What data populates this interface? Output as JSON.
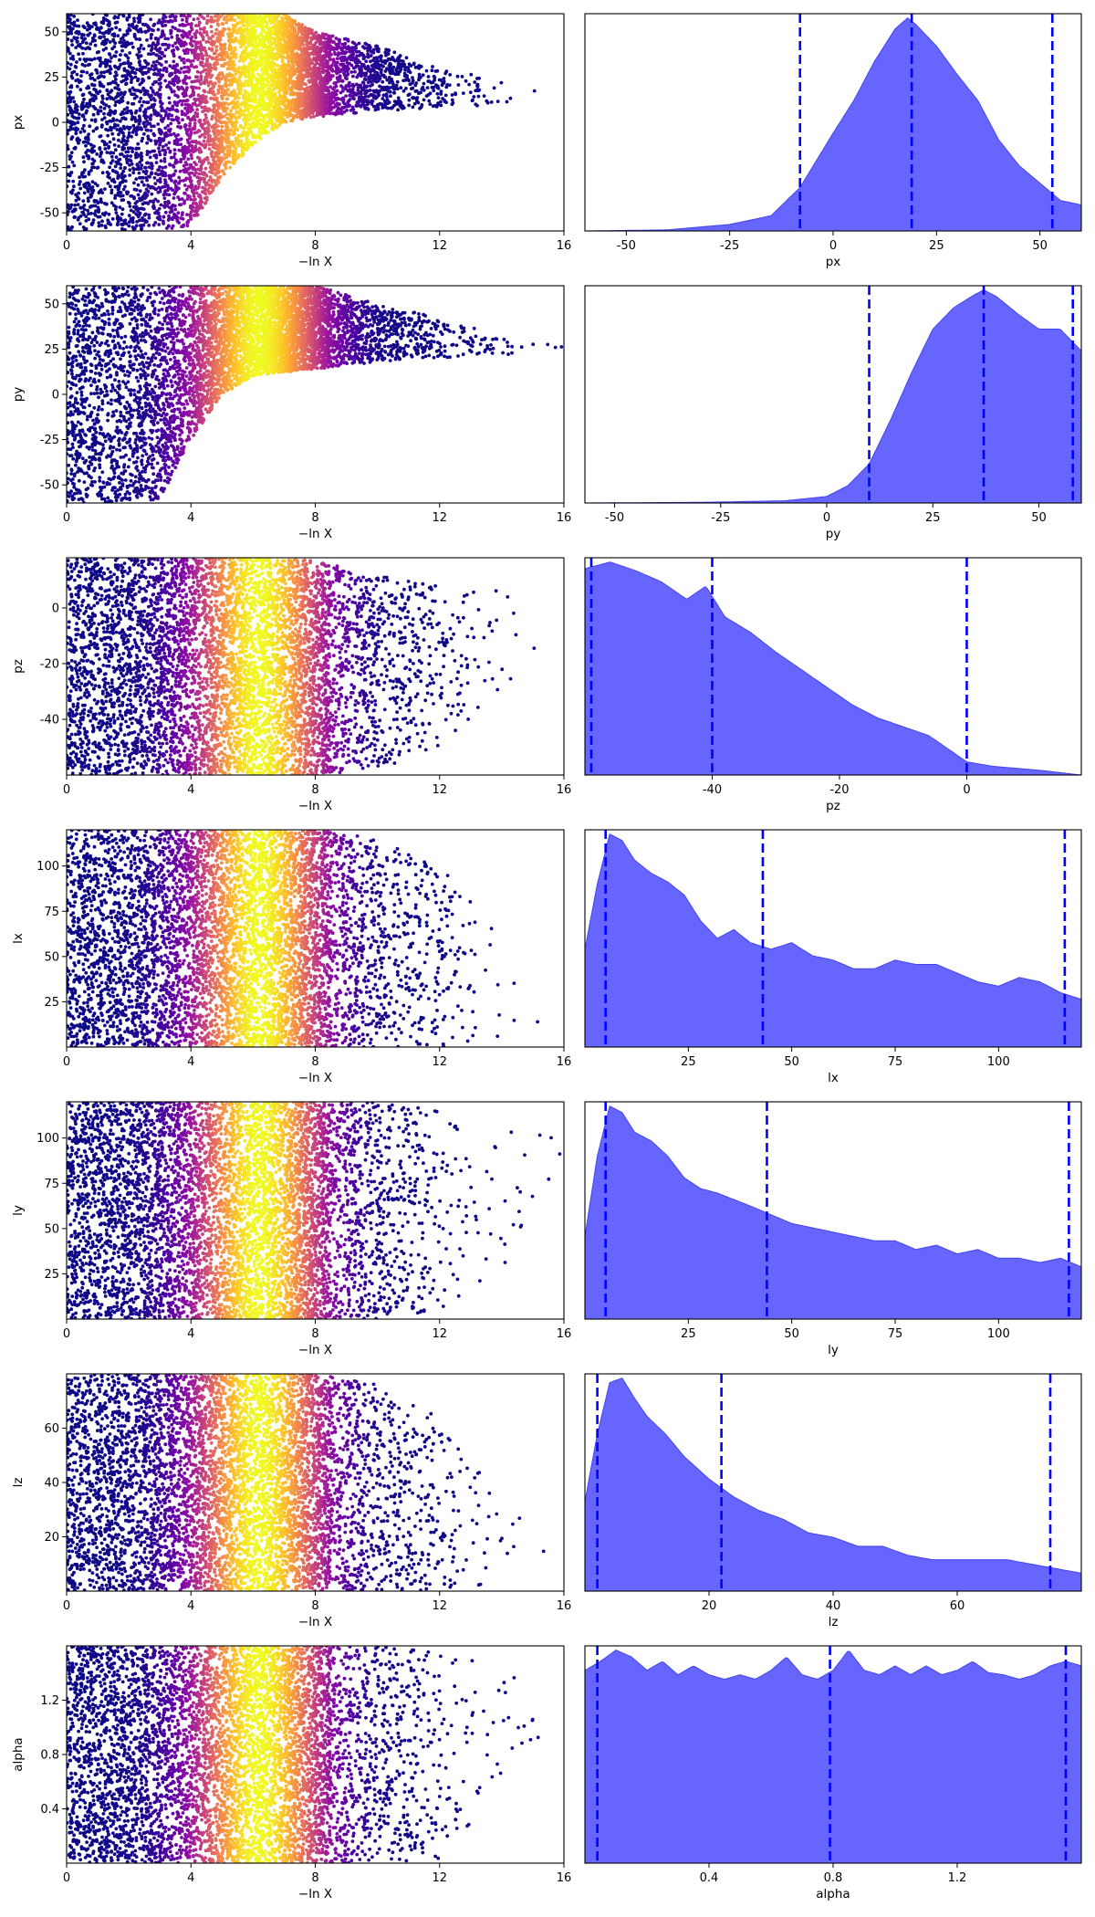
{
  "chart_data": [
    {
      "type": "scatter",
      "xlabel": "−ln X",
      "ylabel": "px",
      "xlim": [
        0,
        16
      ],
      "ylim": [
        -60,
        60
      ],
      "xticks": [
        0,
        4,
        8,
        12,
        16
      ],
      "yticks": [
        -50,
        -25,
        0,
        25,
        50
      ],
      "colormap": "plasma",
      "description_of_points": "nested sampling dead points; peak density near x=6",
      "profile": {
        "x": [
          0,
          2,
          4,
          5,
          6,
          7,
          8,
          10,
          12,
          14,
          16
        ],
        "lower": [
          -60,
          -60,
          -58,
          -30,
          -12,
          0,
          3,
          6,
          8,
          10,
          12
        ],
        "upper": [
          60,
          60,
          60,
          60,
          60,
          60,
          50,
          42,
          30,
          24,
          20
        ]
      }
    },
    {
      "type": "area",
      "xlabel": "px",
      "ylabel": "",
      "xlim": [
        -60,
        60
      ],
      "xticks": [
        -50,
        -25,
        0,
        25,
        50
      ],
      "fill_color": "#6666ff",
      "x": [
        -60,
        -40,
        -25,
        -15,
        -8,
        0,
        5,
        10,
        15,
        18,
        20,
        25,
        30,
        35,
        40,
        45,
        50,
        55,
        60
      ],
      "density": [
        0.0,
        0.005,
        0.03,
        0.07,
        0.2,
        0.45,
        0.6,
        0.78,
        0.93,
        0.98,
        0.95,
        0.85,
        0.72,
        0.6,
        0.42,
        0.3,
        0.22,
        0.14,
        0.12
      ],
      "quantile_lines": [
        -8,
        19,
        53
      ],
      "quantile_color": "#0000ff"
    },
    {
      "type": "scatter",
      "xlabel": "−ln X",
      "ylabel": "py",
      "xlim": [
        0,
        16
      ],
      "ylim": [
        -60,
        60
      ],
      "xticks": [
        0,
        4,
        8,
        12,
        16
      ],
      "yticks": [
        -50,
        -25,
        0,
        25,
        50
      ],
      "colormap": "plasma",
      "profile": {
        "x": [
          0,
          1,
          2,
          3,
          4,
          5,
          6,
          8,
          10,
          12,
          14,
          16
        ],
        "lower": [
          -60,
          -60,
          -60,
          -58,
          -25,
          0,
          10,
          14,
          18,
          20,
          22,
          20
        ],
        "upper": [
          60,
          60,
          60,
          60,
          60,
          60,
          60,
          60,
          50,
          42,
          32,
          28
        ]
      }
    },
    {
      "type": "area",
      "xlabel": "py",
      "ylabel": "",
      "xlim": [
        -57,
        60
      ],
      "xticks": [
        -50,
        -25,
        0,
        25,
        50
      ],
      "fill_color": "#6666ff",
      "x": [
        -57,
        -30,
        -10,
        0,
        5,
        10,
        15,
        20,
        25,
        30,
        35,
        37,
        40,
        45,
        50,
        55,
        60
      ],
      "density": [
        0.0,
        0.003,
        0.01,
        0.03,
        0.08,
        0.18,
        0.38,
        0.6,
        0.8,
        0.9,
        0.96,
        0.98,
        0.95,
        0.87,
        0.8,
        0.8,
        0.7
      ],
      "quantile_lines": [
        10,
        37,
        58
      ],
      "quantile_color": "#0000ff"
    },
    {
      "type": "scatter",
      "xlabel": "−ln X",
      "ylabel": "pz",
      "xlim": [
        0,
        16
      ],
      "ylim": [
        -60,
        18
      ],
      "xticks": [
        0,
        4,
        8,
        12,
        16
      ],
      "yticks": [
        -40,
        -20,
        0
      ],
      "colormap": "plasma",
      "profile": {
        "x": [
          0,
          4,
          6,
          8,
          10,
          12,
          14,
          16
        ],
        "lower": [
          -60,
          -60,
          -60,
          -60,
          -58,
          -50,
          -30,
          -20
        ],
        "upper": [
          18,
          18,
          18,
          17,
          12,
          8,
          6,
          5
        ]
      }
    },
    {
      "type": "area",
      "xlabel": "pz",
      "ylabel": "",
      "xlim": [
        -60,
        18
      ],
      "xticks": [
        -40,
        -20,
        0
      ],
      "fill_color": "#6666ff",
      "x": [
        -60,
        -56,
        -52,
        -48,
        -44,
        -41,
        -38,
        -34,
        -30,
        -26,
        -22,
        -18,
        -14,
        -10,
        -6,
        -3,
        0,
        4,
        8,
        12,
        18
      ],
      "density": [
        0.94,
        0.97,
        0.93,
        0.88,
        0.8,
        0.86,
        0.72,
        0.65,
        0.56,
        0.48,
        0.4,
        0.32,
        0.26,
        0.22,
        0.18,
        0.12,
        0.06,
        0.04,
        0.03,
        0.02,
        0.0
      ],
      "quantile_lines": [
        -59,
        -40,
        0
      ],
      "quantile_color": "#0000ff"
    },
    {
      "type": "scatter",
      "xlabel": "−ln X",
      "ylabel": "lx",
      "xlim": [
        0,
        16
      ],
      "ylim": [
        0,
        120
      ],
      "xticks": [
        0,
        4,
        8,
        12,
        16
      ],
      "yticks": [
        25,
        50,
        75,
        100
      ],
      "colormap": "plasma",
      "profile": {
        "x": [
          0,
          8,
          10,
          12,
          14,
          16
        ],
        "lower": [
          0,
          0,
          0,
          0,
          2,
          5
        ],
        "upper": [
          120,
          120,
          115,
          100,
          60,
          25
        ]
      }
    },
    {
      "type": "area",
      "xlabel": "lx",
      "ylabel": "",
      "xlim": [
        0,
        120
      ],
      "xticks": [
        25,
        50,
        75,
        100
      ],
      "fill_color": "#6666ff",
      "x": [
        0,
        3,
        6,
        9,
        12,
        16,
        20,
        24,
        28,
        32,
        36,
        40,
        45,
        50,
        55,
        60,
        65,
        70,
        75,
        80,
        85,
        90,
        95,
        100,
        105,
        110,
        115,
        120
      ],
      "density": [
        0.45,
        0.75,
        0.98,
        0.95,
        0.86,
        0.8,
        0.76,
        0.7,
        0.58,
        0.5,
        0.54,
        0.48,
        0.45,
        0.48,
        0.42,
        0.4,
        0.36,
        0.36,
        0.4,
        0.38,
        0.38,
        0.34,
        0.3,
        0.28,
        0.32,
        0.3,
        0.25,
        0.22
      ],
      "quantile_lines": [
        5,
        43,
        116
      ],
      "quantile_color": "#0000ff"
    },
    {
      "type": "scatter",
      "xlabel": "−ln X",
      "ylabel": "ly",
      "xlim": [
        0,
        16
      ],
      "ylim": [
        0,
        120
      ],
      "xticks": [
        0,
        4,
        8,
        12,
        16
      ],
      "yticks": [
        25,
        50,
        75,
        100
      ],
      "colormap": "plasma",
      "profile": {
        "x": [
          0,
          8,
          10,
          12,
          14,
          16
        ],
        "lower": [
          0,
          0,
          0,
          5,
          25,
          90
        ],
        "upper": [
          120,
          120,
          120,
          115,
          110,
          100
        ]
      }
    },
    {
      "type": "area",
      "xlabel": "ly",
      "ylabel": "",
      "xlim": [
        0,
        120
      ],
      "xticks": [
        25,
        50,
        75,
        100
      ],
      "fill_color": "#6666ff",
      "x": [
        0,
        3,
        6,
        9,
        12,
        16,
        20,
        24,
        28,
        32,
        36,
        40,
        45,
        50,
        55,
        60,
        65,
        70,
        75,
        80,
        85,
        90,
        95,
        100,
        105,
        110,
        115,
        120
      ],
      "density": [
        0.38,
        0.75,
        0.98,
        0.95,
        0.86,
        0.82,
        0.75,
        0.65,
        0.6,
        0.58,
        0.55,
        0.52,
        0.48,
        0.44,
        0.42,
        0.4,
        0.38,
        0.36,
        0.36,
        0.32,
        0.34,
        0.3,
        0.32,
        0.28,
        0.28,
        0.26,
        0.28,
        0.24
      ],
      "quantile_lines": [
        5,
        44,
        117
      ],
      "quantile_color": "#0000ff"
    },
    {
      "type": "scatter",
      "xlabel": "−ln X",
      "ylabel": "lz",
      "xlim": [
        0,
        16
      ],
      "ylim": [
        0,
        80
      ],
      "xticks": [
        0,
        4,
        8,
        12,
        16
      ],
      "yticks": [
        20,
        40,
        60
      ],
      "colormap": "plasma",
      "profile": {
        "x": [
          0,
          8,
          10,
          12,
          14,
          16
        ],
        "lower": [
          0,
          0,
          0,
          0,
          2,
          8
        ],
        "upper": [
          80,
          80,
          76,
          65,
          35,
          20
        ]
      }
    },
    {
      "type": "area",
      "xlabel": "lz",
      "ylabel": "",
      "xlim": [
        0,
        80
      ],
      "xticks": [
        20,
        40,
        60
      ],
      "fill_color": "#6666ff",
      "x": [
        0,
        2,
        4,
        6,
        8,
        10,
        13,
        16,
        20,
        24,
        28,
        32,
        36,
        40,
        44,
        48,
        52,
        56,
        60,
        64,
        68,
        72,
        76,
        80
      ],
      "density": [
        0.4,
        0.7,
        0.93,
        0.95,
        0.86,
        0.78,
        0.7,
        0.6,
        0.5,
        0.42,
        0.36,
        0.32,
        0.26,
        0.24,
        0.2,
        0.2,
        0.16,
        0.14,
        0.14,
        0.14,
        0.14,
        0.12,
        0.1,
        0.08
      ],
      "quantile_lines": [
        2,
        22,
        75
      ],
      "quantile_color": "#0000ff"
    },
    {
      "type": "scatter",
      "xlabel": "−ln X",
      "ylabel": "alpha",
      "xlim": [
        0,
        16
      ],
      "ylim": [
        0,
        1.6
      ],
      "xticks": [
        0,
        4,
        8,
        12,
        16
      ],
      "yticks": [
        0.4,
        0.8,
        1.2
      ],
      "colormap": "plasma",
      "profile": {
        "x": [
          0,
          8,
          10,
          12,
          14,
          16
        ],
        "lower": [
          0,
          0,
          0,
          0,
          0.6,
          1.1
        ],
        "upper": [
          1.6,
          1.6,
          1.6,
          1.55,
          1.5,
          1.45
        ]
      }
    },
    {
      "type": "area",
      "xlabel": "alpha",
      "ylabel": "",
      "xlim": [
        0,
        1.6
      ],
      "xticks": [
        0.4,
        0.8,
        1.2
      ],
      "fill_color": "#6666ff",
      "x": [
        0,
        0.05,
        0.1,
        0.15,
        0.2,
        0.25,
        0.3,
        0.35,
        0.4,
        0.45,
        0.5,
        0.55,
        0.6,
        0.65,
        0.7,
        0.75,
        0.8,
        0.85,
        0.9,
        0.95,
        1.0,
        1.05,
        1.1,
        1.15,
        1.2,
        1.25,
        1.3,
        1.35,
        1.4,
        1.45,
        1.5,
        1.55,
        1.6
      ],
      "density": [
        0.86,
        0.9,
        0.95,
        0.92,
        0.86,
        0.9,
        0.84,
        0.88,
        0.84,
        0.82,
        0.84,
        0.82,
        0.86,
        0.92,
        0.84,
        0.82,
        0.86,
        0.95,
        0.86,
        0.84,
        0.88,
        0.84,
        0.88,
        0.84,
        0.86,
        0.9,
        0.85,
        0.84,
        0.82,
        0.84,
        0.88,
        0.9,
        0.88
      ],
      "quantile_lines": [
        0.04,
        0.79,
        1.55
      ],
      "quantile_color": "#0000ff"
    }
  ]
}
